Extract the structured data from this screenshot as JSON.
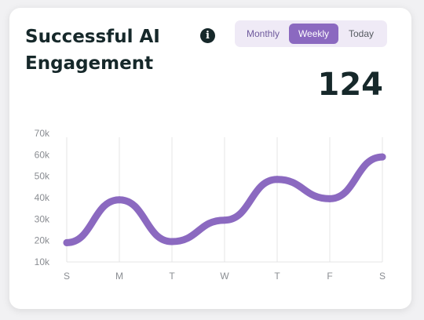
{
  "card": {
    "title": "Successful AI Engagement",
    "info_icon": "info-icon",
    "kpi_value": "124"
  },
  "period_tabs": {
    "options": [
      "Monthly",
      "Weekly",
      "Today"
    ],
    "selected": "Weekly"
  },
  "colors": {
    "accent": "#8b69c0",
    "title": "#16282a",
    "tab_background": "#efeaf6"
  },
  "chart_data": {
    "type": "line",
    "categories": [
      "S",
      "M",
      "T",
      "W",
      "T",
      "F",
      "S"
    ],
    "series": [
      {
        "values": [
          19000,
          39000,
          19500,
          29500,
          48500,
          39500,
          59000
        ]
      }
    ],
    "y_ticks": [
      "10k",
      "20k",
      "30k",
      "40k",
      "50k",
      "60k",
      "70k"
    ],
    "ylim": [
      10000,
      70000
    ],
    "grid": "vertical",
    "smooth": true
  }
}
